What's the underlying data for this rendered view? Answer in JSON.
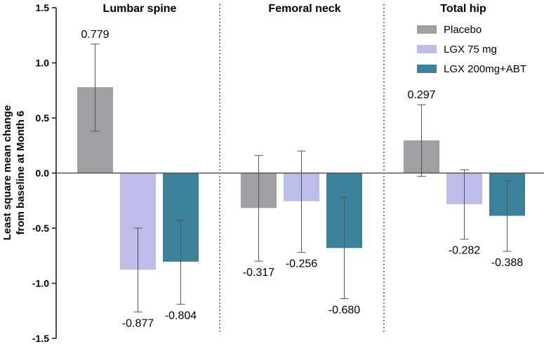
{
  "chart_data": {
    "type": "bar",
    "title": "",
    "ylabel_line1": "Least square mean change",
    "ylabel_line2": "from baseline at Month 6",
    "xlabel": "",
    "ylim": [
      -1.5,
      1.5
    ],
    "yticks": [
      1.5,
      1.0,
      0.5,
      0.0,
      -0.5,
      -1.0,
      -1.5
    ],
    "ytick_labels": [
      "1.5",
      "1.0",
      "0.5",
      "0.0",
      "-0.5",
      "-1.0",
      "-1.5"
    ],
    "categories": [
      "Lumbar spine",
      "Femoral neck",
      "Total hip"
    ],
    "series": [
      {
        "name": "Placebo",
        "color": "#a0a0a4",
        "values": [
          0.779,
          -0.317,
          0.297
        ],
        "labels": [
          "0.779",
          "-0.317",
          "0.297"
        ],
        "err_low": [
          0.38,
          -0.8,
          -0.03
        ],
        "err_high": [
          1.17,
          0.16,
          0.62
        ]
      },
      {
        "name": "LGX 75 mg",
        "color": "#bcbde8",
        "values": [
          -0.877,
          -0.256,
          -0.282
        ],
        "labels": [
          "-0.877",
          "-0.256",
          "-0.282"
        ],
        "err_low": [
          -1.26,
          -0.72,
          -0.6
        ],
        "err_high": [
          -0.5,
          0.2,
          0.03
        ]
      },
      {
        "name": "LGX 200mg+ABT",
        "color": "#3a8199",
        "values": [
          -0.804,
          -0.68,
          -0.388
        ],
        "labels": [
          "-0.804",
          "-0.680",
          "-0.388"
        ],
        "err_low": [
          -1.19,
          -1.14,
          -0.71
        ],
        "err_high": [
          -0.43,
          -0.22,
          -0.07
        ]
      }
    ],
    "legend_position": "top-right",
    "grid": false,
    "group_separators": "dotted"
  }
}
